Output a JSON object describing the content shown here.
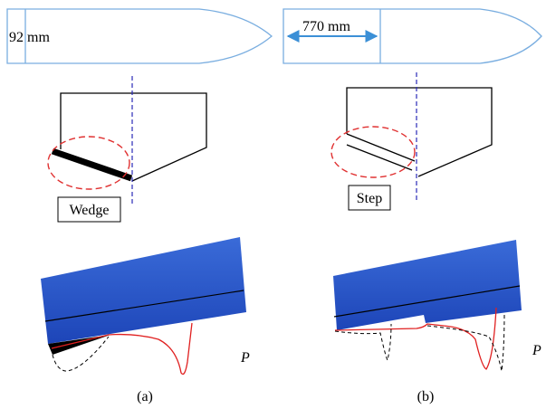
{
  "dimensions": {
    "left": "92 mm",
    "right": "770 mm"
  },
  "labels": {
    "wedge": "Wedge",
    "step": "Step"
  },
  "pressure": [
    "P",
    "P"
  ],
  "captions": [
    "(a)",
    "(b)"
  ]
}
